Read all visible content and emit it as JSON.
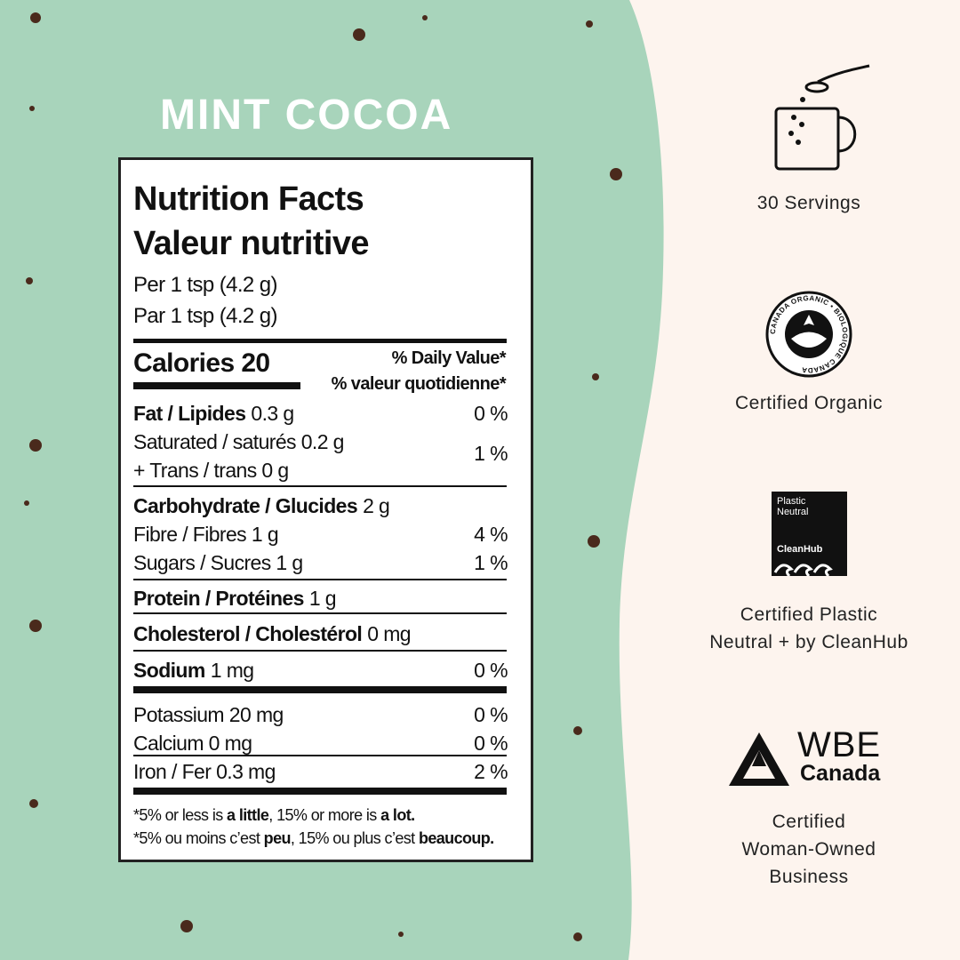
{
  "header": {
    "title": "MINT COCOA"
  },
  "label": {
    "heading_en": "Nutrition Facts",
    "heading_fr": "Valeur nutritive",
    "serving_en": "Per 1 tsp (4.2 g)",
    "serving_fr": "Par 1 tsp (4.2 g)",
    "calories": "Calories 20",
    "dv_en": "% Daily Value*",
    "dv_fr": "% valeur quotidienne*",
    "rows": [
      {
        "name": "Fat / Lipides",
        "amount": "0.3 g",
        "dv": "0 %"
      },
      {
        "name": "Saturated / saturés 0.2 g",
        "name2": "+ Trans / trans 0 g",
        "dv": "1 %"
      },
      {
        "name": "Carbohydrate / Glucides",
        "amount": "2 g"
      },
      {
        "name": "Fibre / Fibres 1 g",
        "dv": "4 %"
      },
      {
        "name": "Sugars / Sucres 1 g",
        "dv": "1 %"
      },
      {
        "name": "Protein / Protéines",
        "amount": "1 g"
      },
      {
        "name": "Cholesterol / Cholestérol",
        "amount": "0 mg"
      },
      {
        "name": "Sodium",
        "amount": "1 mg",
        "dv": "0 %"
      },
      {
        "name": "Potassium 20 mg",
        "dv": "0 %"
      },
      {
        "name": "Calcium 0 mg",
        "dv": "0 %"
      },
      {
        "name": "Iron / Fer 0.3 mg",
        "dv": "2 %"
      }
    ],
    "footnote_en": [
      "*5% or less is ",
      "a little",
      ", 15% or more is ",
      "a lot."
    ],
    "footnote_fr": [
      "*5% ou moins c’est ",
      "peu",
      ", 15% ou plus c’est ",
      "beaucoup."
    ]
  },
  "features": [
    {
      "lines": [
        "30 Servings"
      ]
    },
    {
      "badge": [
        "CANADA ORGANIC • BIOLOGIQUE CANADA"
      ],
      "lines": [
        "Certified Organic"
      ]
    },
    {
      "badge": [
        "Plastic",
        "Neutral",
        "CleanHub"
      ],
      "lines": [
        "Certified Plastic",
        "Neutral + by CleanHub"
      ]
    },
    {
      "badge": [
        "WBE",
        "Canada"
      ],
      "lines": [
        "Certified",
        "Woman-Owned",
        "Business"
      ]
    }
  ]
}
